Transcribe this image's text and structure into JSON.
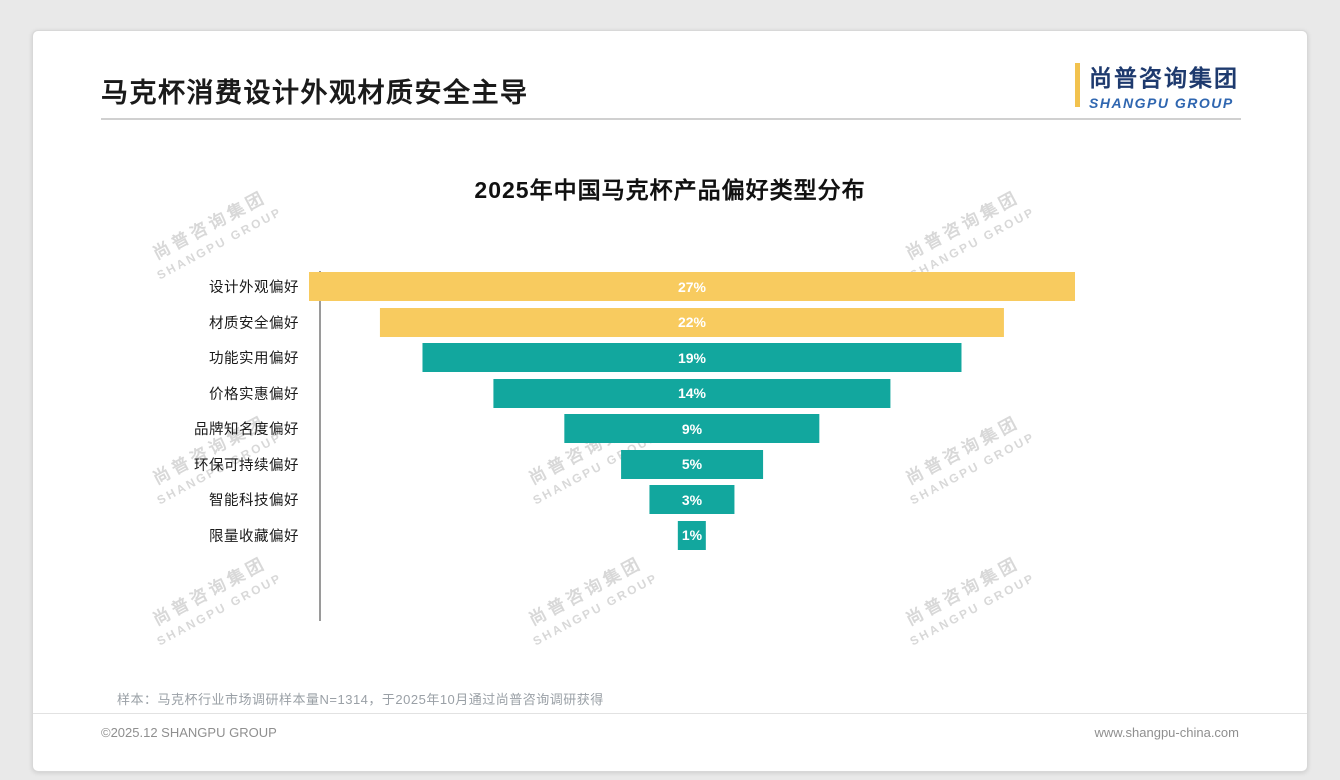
{
  "page": {
    "title": "马克杯消费设计外观材质安全主导",
    "logo": {
      "cn": "尚普咨询集团",
      "en": "SHANGPU GROUP"
    },
    "watermark": {
      "cn": "尚普咨询集团",
      "en": "SHANGPU GROUP"
    },
    "footnote": "样本：马克杯行业市场调研样本量N=1314，于2025年10月通过尚普咨询调研获得",
    "footer": {
      "left": "©2025.12 SHANGPU GROUP",
      "right": "www.shangpu-china.com"
    }
  },
  "chart_data": {
    "type": "bar",
    "subtype": "horizontal-centered-funnel",
    "title": "2025年中国马克杯产品偏好类型分布",
    "categories": [
      "设计外观偏好",
      "材质安全偏好",
      "功能实用偏好",
      "价格实惠偏好",
      "品牌知名度偏好",
      "环保可持续偏好",
      "智能科技偏好",
      "限量收藏偏好"
    ],
    "values": [
      27,
      22,
      19,
      14,
      9,
      5,
      3,
      1
    ],
    "labels": [
      "27%",
      "22%",
      "19%",
      "14%",
      "9%",
      "5%",
      "3%",
      "1%"
    ],
    "colors": [
      "#F8CB5F",
      "#F8CB5F",
      "#12A79E",
      "#12A79E",
      "#12A79E",
      "#12A79E",
      "#12A79E",
      "#12A79E"
    ],
    "highlight_color": "#F8CB5F",
    "base_color": "#12A79E",
    "value_label_color": "#ffffff",
    "xlabel": "",
    "ylabel": "",
    "xlim": [
      0,
      27
    ],
    "legend": false,
    "grid": false
  }
}
